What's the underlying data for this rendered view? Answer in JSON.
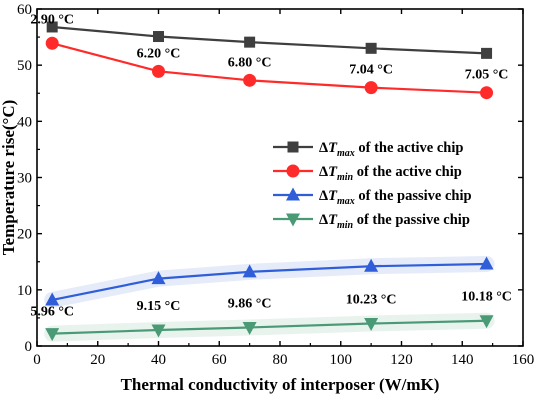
{
  "chart_data": {
    "type": "line",
    "title": "",
    "xlabel": "Thermal conductivity of interposer (W/mK)",
    "ylabel": "Temperature rise(°C)",
    "xlim": [
      0,
      160
    ],
    "ylim": [
      0,
      60
    ],
    "x_ticks": [
      0,
      20,
      40,
      60,
      80,
      100,
      120,
      140,
      160
    ],
    "y_ticks": [
      0,
      10,
      20,
      30,
      40,
      50,
      60
    ],
    "grid": false,
    "legend_position": "right",
    "x": [
      5,
      40,
      70,
      110,
      148
    ],
    "series": [
      {
        "key": "active_max",
        "name_prefix": "ΔT",
        "name_subscript": "max",
        "name_suffix": " of the active chip",
        "color": "#3f3f3f",
        "marker": "square",
        "values": [
          56.8,
          55.1,
          54.1,
          53.0,
          52.1
        ]
      },
      {
        "key": "active_min",
        "name_prefix": "ΔT",
        "name_subscript": "min",
        "name_suffix": " of the active chip",
        "color": "#ff2a2a",
        "marker": "circle",
        "values": [
          53.9,
          48.9,
          47.3,
          46.0,
          45.1
        ]
      },
      {
        "key": "passive_max",
        "name_prefix": "ΔT",
        "name_subscript": "max",
        "name_suffix": " of the passive chip",
        "color": "#2f5ed8",
        "marker": "triangle-up",
        "values": [
          8.2,
          12.0,
          13.2,
          14.2,
          14.6
        ]
      },
      {
        "key": "passive_min",
        "name_prefix": "ΔT",
        "name_subscript": "min",
        "name_suffix": " of the passive chip",
        "color": "#4a9a76",
        "marker": "triangle-down",
        "values": [
          2.2,
          2.85,
          3.3,
          4.0,
          4.5
        ]
      }
    ],
    "annotations": {
      "active_gap": [
        "2.90 °C",
        "6.20 °C",
        "6.80 °C",
        "7.04 °C",
        "7.05 °C"
      ],
      "passive_gap": [
        "5.96 °C",
        "9.15 °C",
        "9.86 °C",
        "10.23 °C",
        "10.18 °C"
      ]
    }
  }
}
